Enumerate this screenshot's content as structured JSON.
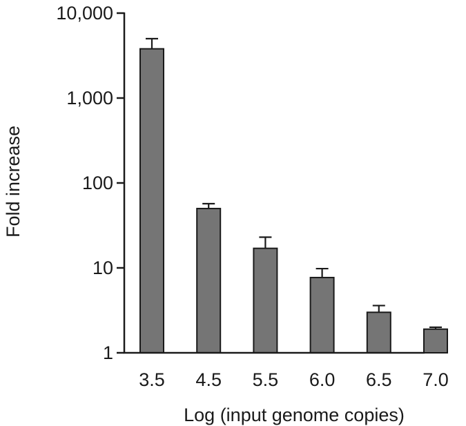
{
  "chart_data": {
    "type": "bar",
    "title": "",
    "xlabel": "Log (input genome copies)",
    "ylabel": "Fold increase",
    "y_scale": "log",
    "ylim": [
      1,
      10000
    ],
    "y_ticks": [
      {
        "value": 1,
        "label": "1"
      },
      {
        "value": 10,
        "label": "10"
      },
      {
        "value": 100,
        "label": "100"
      },
      {
        "value": 1000,
        "label": "1,000"
      },
      {
        "value": 10000,
        "label": "10,000"
      }
    ],
    "categories": [
      "3.5",
      "4.5",
      "5.5",
      "6.0",
      "6.5",
      "7.0"
    ],
    "values": [
      3800,
      50,
      17,
      7.7,
      3.0,
      1.9
    ],
    "error_upper": [
      5000,
      57,
      23,
      9.8,
      3.6,
      2.0
    ],
    "bar_color": "#757575",
    "grid": false,
    "legend": "none"
  }
}
